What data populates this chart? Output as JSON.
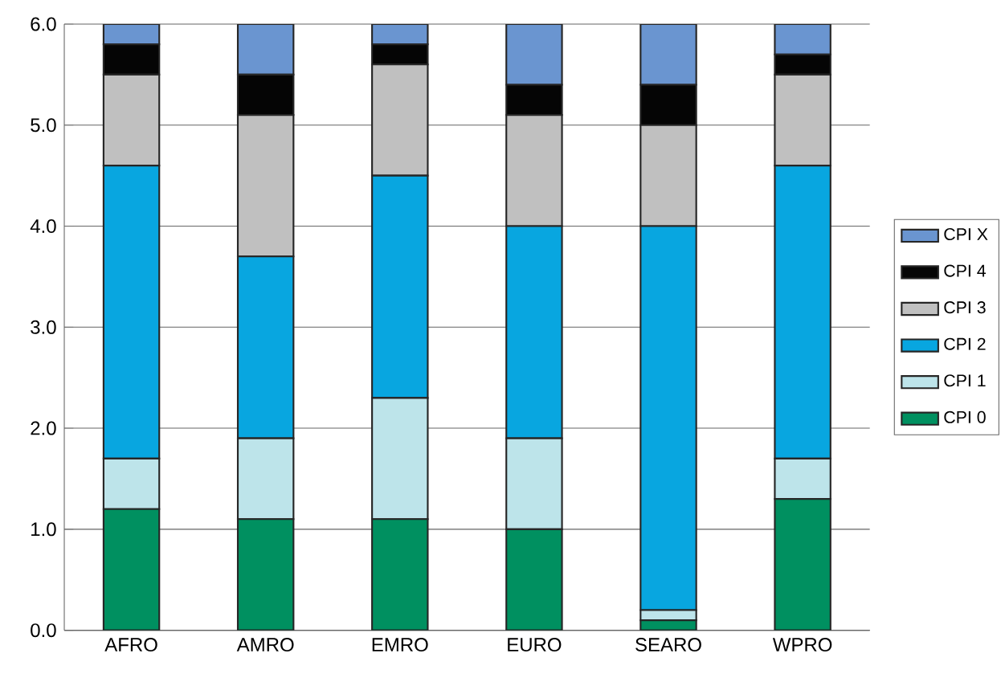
{
  "chart_data": {
    "type": "bar",
    "stacked": true,
    "categories": [
      "AFRO",
      "AMRO",
      "EMRO",
      "EURO",
      "SEARO",
      "WPRO"
    ],
    "series": [
      {
        "name": "CPI 0",
        "color": "#009060",
        "values": [
          1.2,
          1.1,
          1.1,
          1.0,
          0.1,
          1.3
        ]
      },
      {
        "name": "CPI 1",
        "color": "#bde4ea",
        "values": [
          0.5,
          0.8,
          1.2,
          0.9,
          0.1,
          0.4
        ]
      },
      {
        "name": "CPI 2",
        "color": "#08a6e0",
        "values": [
          2.9,
          1.8,
          2.2,
          2.1,
          3.8,
          2.9
        ]
      },
      {
        "name": "CPI 3",
        "color": "#c0c0c0",
        "values": [
          0.9,
          1.4,
          1.1,
          1.1,
          1.0,
          0.9
        ]
      },
      {
        "name": "CPI 4",
        "color": "#050505",
        "values": [
          0.3,
          0.4,
          0.2,
          0.3,
          0.4,
          0.2
        ]
      },
      {
        "name": "CPI X",
        "color": "#6a95d0",
        "values": [
          0.2,
          0.5,
          0.2,
          0.6,
          0.6,
          0.3
        ]
      }
    ],
    "ylim": [
      0,
      6
    ],
    "yticks": [
      {
        "value": 0,
        "label": "0.0"
      },
      {
        "value": 1,
        "label": "1.0"
      },
      {
        "value": 2,
        "label": "2.0"
      },
      {
        "value": 3,
        "label": "3.0"
      },
      {
        "value": 4,
        "label": "4.0"
      },
      {
        "value": 5,
        "label": "5.0"
      },
      {
        "value": 6,
        "label": "6.0"
      }
    ],
    "grid": "y",
    "legend": "right"
  }
}
